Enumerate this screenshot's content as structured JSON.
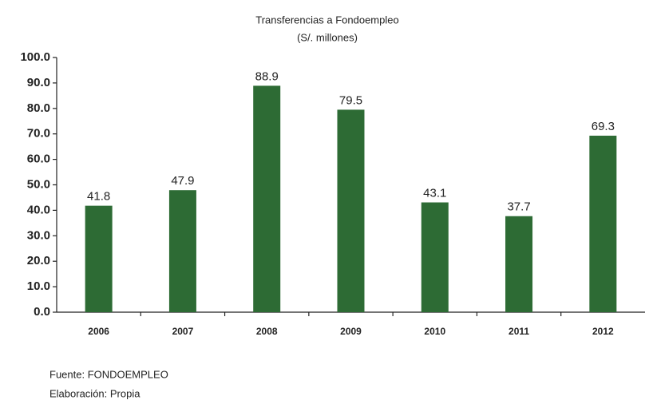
{
  "chart_data": {
    "type": "bar",
    "title": "Transferencias  a Fondoempleo",
    "subtitle": "(S/. millones)",
    "categories": [
      "2006",
      "2007",
      "2008",
      "2009",
      "2010",
      "2011",
      "2012"
    ],
    "values": [
      41.8,
      47.9,
      88.9,
      79.5,
      43.1,
      37.7,
      69.3
    ],
    "color": "#2d6b34",
    "ylim": [
      0,
      100
    ],
    "yticks": [
      {
        "value": 0,
        "label": "0.0"
      },
      {
        "value": 10,
        "label": "10.0"
      },
      {
        "value": 20,
        "label": "20.0"
      },
      {
        "value": 30,
        "label": "30.0"
      },
      {
        "value": 40,
        "label": "40.0"
      },
      {
        "value": 50,
        "label": "50.0"
      },
      {
        "value": 60,
        "label": "60.0"
      },
      {
        "value": 70,
        "label": "70.0"
      },
      {
        "value": 80,
        "label": "80.0"
      },
      {
        "value": 90,
        "label": "90.0"
      },
      {
        "value": 100,
        "label": "100.0"
      }
    ],
    "grid": false,
    "source": "Fuente:  FONDOEMPLEO",
    "credit": "Elaboración:  Propia"
  }
}
